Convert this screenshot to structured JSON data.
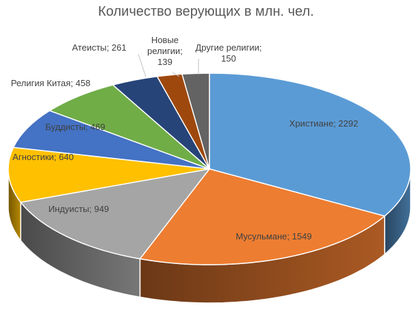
{
  "chart_data": {
    "type": "pie",
    "title": "Количество верующих в млн. чел.",
    "slices": [
      {
        "label": "Христиане",
        "value": 2292,
        "color": "#5B9BD5",
        "text": "Христиане; 2292"
      },
      {
        "label": "Мусульмане",
        "value": 1549,
        "color": "#ED7D31",
        "text": "Мусульмане; 1549"
      },
      {
        "label": "Индуисты",
        "value": 949,
        "color": "#A5A5A5",
        "text": "Индуисты; 949"
      },
      {
        "label": "Агностики",
        "value": 640,
        "color": "#FFC000",
        "text": "Агностики; 640"
      },
      {
        "label": "Буддисты",
        "value": 469,
        "color": "#4472C4",
        "text": "Буддисты; 469"
      },
      {
        "label": "Религия Китая",
        "value": 458,
        "color": "#70AD47",
        "text": "Религия Китая; 458"
      },
      {
        "label": "Атеисты",
        "value": 261,
        "color": "#264478",
        "text": "Атеисты; 261"
      },
      {
        "label": "Новые религии",
        "value": 139,
        "color": "#9E480E",
        "text": "Новые религии; 139"
      },
      {
        "label": "Другие религии",
        "value": 150,
        "color": "#636363",
        "text": "Другие религии; 150"
      }
    ]
  }
}
